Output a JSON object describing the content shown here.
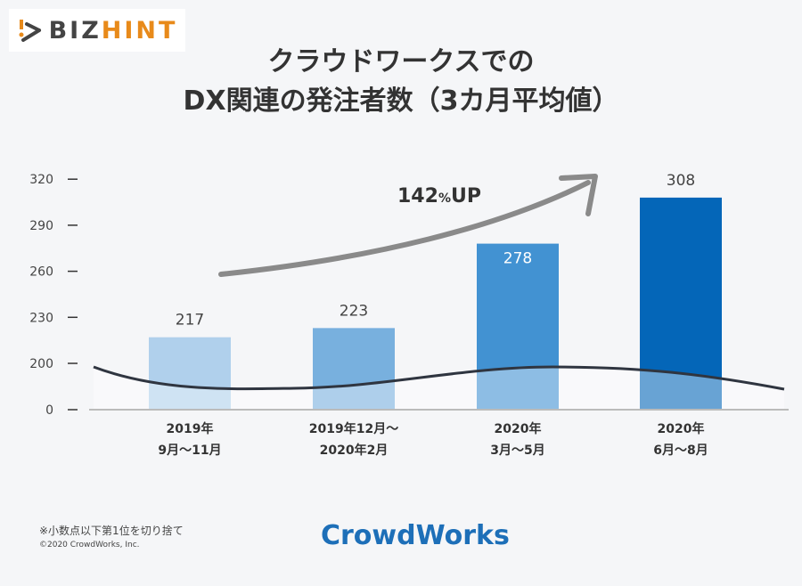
{
  "logo": {
    "part1": "BIZ",
    "part2": "HINT"
  },
  "title_lines": [
    "クラウドワークスでの",
    "DX関連の発注者数（3カ月平均値）"
  ],
  "chart_data": {
    "type": "bar",
    "title": "クラウドワークスでの DX関連の発注者数（3カ月平均値）",
    "categories": [
      [
        "2019年",
        "9月〜11月"
      ],
      [
        "2019年12月〜",
        "2020年2月"
      ],
      [
        "2020年",
        "3月〜5月"
      ],
      [
        "2020年",
        "6月〜8月"
      ]
    ],
    "values": [
      217,
      223,
      278,
      308
    ],
    "data_labels": [
      "217",
      "223",
      "278",
      "308"
    ],
    "yticks": [
      "320",
      "290",
      "260",
      "230",
      "200",
      "0"
    ],
    "ytick_values": [
      320,
      290,
      260,
      230,
      200,
      0
    ],
    "axis_break": "between 0 and 200",
    "ylim": [
      200,
      320
    ],
    "bar_colors": [
      "#b0d0ec",
      "#78b0de",
      "#4292d2",
      "#0466b8"
    ],
    "annotation": {
      "number": "142",
      "unit": "%",
      "suffix": "UP"
    },
    "grid": false
  },
  "footer": {
    "note": "※小数点以下第1位を切り捨て",
    "copyright": "©2020 CrowdWorks, Inc.",
    "brand": "CrowdWorks"
  }
}
